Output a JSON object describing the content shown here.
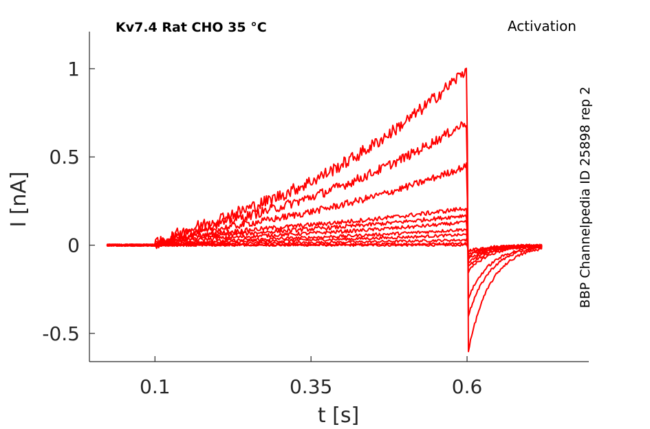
{
  "chart_data": {
    "type": "line",
    "title": "Kv7.4  Rat  CHO  35 °C",
    "title_right": "Activation",
    "side_label": "BBP Channelpedia ID 25898 rep 2",
    "xlabel": "t [s]",
    "ylabel": "I [nA]",
    "xlim": [
      -0.005,
      0.795
    ],
    "ylim": [
      -0.66,
      1.21
    ],
    "xticks": [
      0.1,
      0.35,
      0.6
    ],
    "xtick_labels": [
      "0.1",
      "0.35",
      "0.6"
    ],
    "yticks": [
      -0.5,
      0,
      0.5,
      1
    ],
    "ytick_labels": [
      "-0.5",
      "0",
      "0.5",
      "1"
    ],
    "grid": false,
    "series_color": "#ff0000",
    "step_on": 0.1,
    "step_off": 0.6,
    "t_start": 0.023,
    "t_end": 0.72,
    "series": [
      {
        "steady_start": 0.0,
        "steady_end": 0.0,
        "tail": -0.03
      },
      {
        "steady_start": 0.0,
        "steady_end": 0.01,
        "tail": -0.04
      },
      {
        "steady_start": 0.01,
        "steady_end": 0.03,
        "tail": -0.05
      },
      {
        "steady_start": 0.02,
        "steady_end": 0.06,
        "tail": -0.06
      },
      {
        "steady_start": 0.03,
        "steady_end": 0.09,
        "tail": -0.08
      },
      {
        "steady_start": 0.05,
        "steady_end": 0.13,
        "tail": -0.1
      },
      {
        "steady_start": 0.07,
        "steady_end": 0.17,
        "tail": -0.12
      },
      {
        "steady_start": 0.09,
        "steady_end": 0.21,
        "tail": -0.15
      },
      {
        "steady_start": 0.11,
        "steady_end": 0.45,
        "tail": -0.3
      },
      {
        "steady_start": 0.14,
        "steady_end": 0.7,
        "tail": -0.4
      },
      {
        "steady_start": 0.16,
        "steady_end": 1.0,
        "tail": -0.6
      }
    ]
  }
}
